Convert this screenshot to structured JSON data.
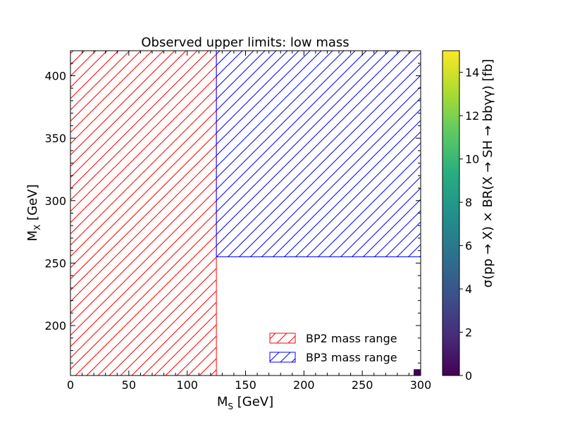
{
  "chart_data": {
    "type": "heatmap",
    "title": "Observed upper limits: low mass",
    "xlabel_main": "M",
    "xlabel_sub": "S",
    "xlabel_unit": " [GeV]",
    "ylabel_main": "M",
    "ylabel_sub": "X",
    "ylabel_unit": " [GeV]",
    "xlim": [
      0,
      300
    ],
    "ylim": [
      160,
      420
    ],
    "xticks": [
      0,
      50,
      100,
      150,
      200,
      250,
      300
    ],
    "yticks": [
      200,
      250,
      300,
      350,
      400
    ],
    "colorbar": {
      "label": "σ(pp → X) ×  BR(X → SH → bbγγ) [fb]",
      "range": [
        0,
        15
      ],
      "ticks": [
        0,
        2,
        4,
        6,
        8,
        10,
        12,
        14
      ],
      "colormap": "viridis"
    },
    "regions": [
      {
        "name": "BP2 mass range",
        "color": "#ff0000",
        "x": [
          0,
          125
        ],
        "y": [
          160,
          420
        ]
      },
      {
        "name": "BP3 mass range",
        "color": "#0000ff",
        "x": [
          125,
          300
        ],
        "y": [
          255,
          420
        ]
      }
    ],
    "cells": [
      {
        "x": [
          294,
          300
        ],
        "y": [
          160,
          165
        ],
        "value": 0.3
      }
    ],
    "grid": false,
    "legend_position": "lower-right"
  }
}
